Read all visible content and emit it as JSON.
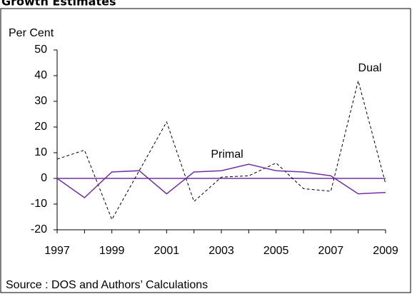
{
  "chart_data": {
    "type": "line",
    "title": "Growth Estimates",
    "y_label": "Per Cent",
    "source": "Source : DOS and  Authors’ Calculations",
    "x": [
      1997,
      1998,
      1999,
      2000,
      2001,
      2002,
      2003,
      2004,
      2005,
      2006,
      2007,
      2008,
      2009
    ],
    "series": [
      {
        "name": "Dual",
        "color": "#000000",
        "dashed": true,
        "values": [
          7.5,
          11,
          -16,
          3,
          22,
          -9,
          0.5,
          1,
          6,
          -4,
          -5,
          38,
          -2
        ]
      },
      {
        "name": "Primal",
        "color": "#7030a0",
        "dashed": false,
        "values": [
          0,
          -7.5,
          2.5,
          3,
          -6,
          2.5,
          3,
          5.5,
          3,
          2.5,
          1,
          -6,
          -5.5
        ]
      }
    ],
    "xlim": [
      1997,
      2009
    ],
    "xticks": [
      1997,
      1999,
      2001,
      2003,
      2005,
      2007,
      2009
    ],
    "ylim": [
      -20,
      50
    ],
    "yticks": [
      -20,
      -10,
      0,
      10,
      20,
      30,
      40,
      50
    ],
    "zero_line_color": "#7030a0",
    "grid": false
  }
}
